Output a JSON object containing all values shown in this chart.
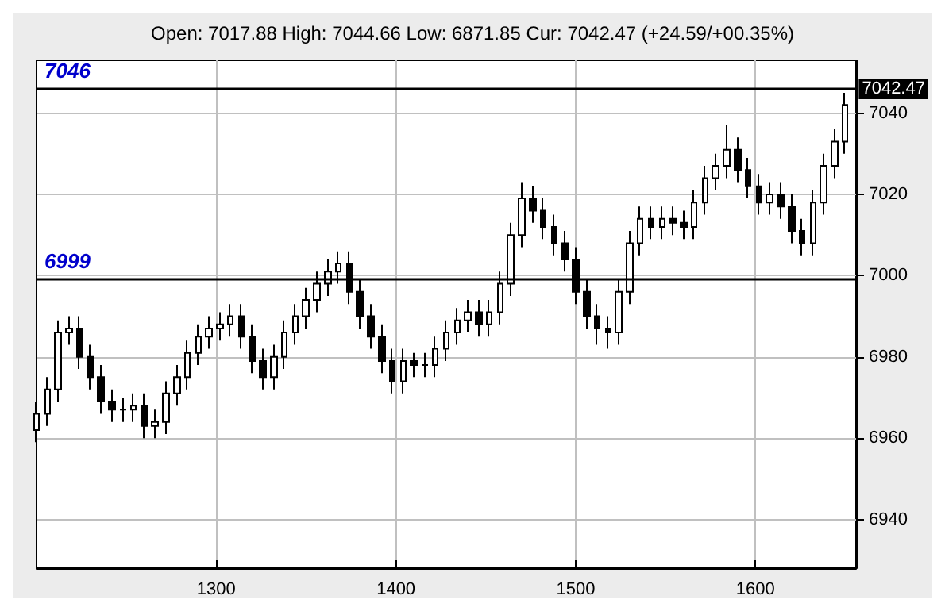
{
  "chart_data": {
    "type": "candlestick",
    "subtitle": "Open: 7017.88 High: 7044.66 Low: 6871.85 Cur: 7042.47 (+24.59/+00.35%)",
    "x": [
      1200,
      1206,
      1212,
      1218,
      1224,
      1230,
      1236,
      1242,
      1248,
      1254,
      1260,
      1266,
      1272,
      1278,
      1284,
      1290,
      1296,
      1302,
      1308,
      1314,
      1320,
      1326,
      1332,
      1338,
      1344,
      1350,
      1356,
      1362,
      1368,
      1374,
      1380,
      1386,
      1392,
      1398,
      1404,
      1410,
      1416,
      1422,
      1428,
      1434,
      1440,
      1446,
      1452,
      1458,
      1464,
      1470,
      1476,
      1482,
      1488,
      1494,
      1500,
      1506,
      1512,
      1518,
      1524,
      1530,
      1536,
      1542,
      1548,
      1554,
      1560,
      1566,
      1572,
      1578,
      1584,
      1590,
      1596,
      1602,
      1608,
      1614,
      1620,
      1626,
      1632,
      1638,
      1644,
      1650
    ],
    "ohlc": [
      [
        6962,
        6969,
        6959,
        6966
      ],
      [
        6966,
        6975,
        6963,
        6972
      ],
      [
        6972,
        6989,
        6969,
        6986
      ],
      [
        6986,
        6990,
        6983,
        6987
      ],
      [
        6987,
        6990,
        6977,
        6980
      ],
      [
        6980,
        6983,
        6972,
        6975
      ],
      [
        6975,
        6978,
        6966,
        6969
      ],
      [
        6969,
        6972,
        6964,
        6967
      ],
      [
        6967,
        6970,
        6964,
        6967
      ],
      [
        6967,
        6971,
        6964,
        6968
      ],
      [
        6968,
        6971,
        6960,
        6963
      ],
      [
        6963,
        6967,
        6960,
        6964
      ],
      [
        6964,
        6974,
        6961,
        6971
      ],
      [
        6971,
        6978,
        6968,
        6975
      ],
      [
        6975,
        6984,
        6972,
        6981
      ],
      [
        6981,
        6988,
        6978,
        6985
      ],
      [
        6985,
        6990,
        6982,
        6987
      ],
      [
        6987,
        6991,
        6984,
        6988
      ],
      [
        6988,
        6993,
        6985,
        6990
      ],
      [
        6990,
        6993,
        6982,
        6985
      ],
      [
        6985,
        6988,
        6976,
        6979
      ],
      [
        6979,
        6982,
        6972,
        6975
      ],
      [
        6975,
        6983,
        6972,
        6980
      ],
      [
        6980,
        6989,
        6977,
        6986
      ],
      [
        6986,
        6993,
        6983,
        6990
      ],
      [
        6990,
        6997,
        6987,
        6994
      ],
      [
        6994,
        7001,
        6991,
        6998
      ],
      [
        6998,
        7004,
        6995,
        7001
      ],
      [
        7001,
        7006,
        6998,
        7003
      ],
      [
        7003,
        7006,
        6993,
        6996
      ],
      [
        6996,
        6999,
        6987,
        6990
      ],
      [
        6990,
        6993,
        6982,
        6985
      ],
      [
        6985,
        6988,
        6976,
        6979
      ],
      [
        6979,
        6982,
        6971,
        6974
      ],
      [
        6974,
        6982,
        6971,
        6979
      ],
      [
        6979,
        6981,
        6975,
        6978
      ],
      [
        6978,
        6981,
        6975,
        6978
      ],
      [
        6978,
        6985,
        6975,
        6982
      ],
      [
        6982,
        6989,
        6979,
        6986
      ],
      [
        6986,
        6992,
        6983,
        6989
      ],
      [
        6989,
        6994,
        6986,
        6991
      ],
      [
        6991,
        6994,
        6985,
        6988
      ],
      [
        6988,
        6994,
        6985,
        6991
      ],
      [
        6991,
        7001,
        6988,
        6998
      ],
      [
        6998,
        7013,
        6995,
        7010
      ],
      [
        7010,
        7023,
        7007,
        7019
      ],
      [
        7019,
        7022,
        7013,
        7016
      ],
      [
        7016,
        7019,
        7009,
        7012
      ],
      [
        7012,
        7015,
        7005,
        7008
      ],
      [
        7008,
        7011,
        7001,
        7004
      ],
      [
        7004,
        7007,
        6993,
        6996
      ],
      [
        6996,
        6999,
        6987,
        6990
      ],
      [
        6990,
        6993,
        6983,
        6987
      ],
      [
        6987,
        6990,
        6982,
        6986
      ],
      [
        6986,
        6999,
        6983,
        6996
      ],
      [
        6996,
        7011,
        6993,
        7008
      ],
      [
        7008,
        7017,
        7005,
        7014
      ],
      [
        7014,
        7017,
        7009,
        7012
      ],
      [
        7012,
        7017,
        7009,
        7014
      ],
      [
        7014,
        7017,
        7010,
        7013
      ],
      [
        7013,
        7016,
        7009,
        7012
      ],
      [
        7012,
        7021,
        7009,
        7018
      ],
      [
        7018,
        7027,
        7015,
        7024
      ],
      [
        7024,
        7030,
        7021,
        7027
      ],
      [
        7027,
        7037,
        7024,
        7031
      ],
      [
        7031,
        7034,
        7023,
        7026
      ],
      [
        7026,
        7029,
        7019,
        7022
      ],
      [
        7022,
        7025,
        7015,
        7018
      ],
      [
        7018,
        7023,
        7015,
        7020
      ],
      [
        7020,
        7023,
        7014,
        7017
      ],
      [
        7017,
        7020,
        7008,
        7011
      ],
      [
        7011,
        7014,
        7005,
        7008
      ],
      [
        7008,
        7021,
        7005,
        7018
      ],
      [
        7018,
        7030,
        7015,
        7027
      ],
      [
        7027,
        7036,
        7024,
        7033
      ],
      [
        7033,
        7045,
        7030,
        7042
      ]
    ],
    "color": "#000000",
    "xlim": [
      1200,
      1656
    ],
    "xticks": [
      1300,
      1400,
      1500,
      1600
    ],
    "ylim": [
      6928,
      7053
    ],
    "yticks": [
      6940,
      6960,
      6980,
      7000,
      7020,
      7040
    ],
    "grid": true,
    "ref_lines": [
      {
        "axis": "y",
        "value": 6999,
        "label": "6999",
        "color": "#000000"
      },
      {
        "axis": "y",
        "value": 7046,
        "label": "7046",
        "color": "#000000"
      }
    ],
    "annotations": [
      {
        "text": "7042.47",
        "x": 1650,
        "y": 7042.47
      }
    ]
  }
}
